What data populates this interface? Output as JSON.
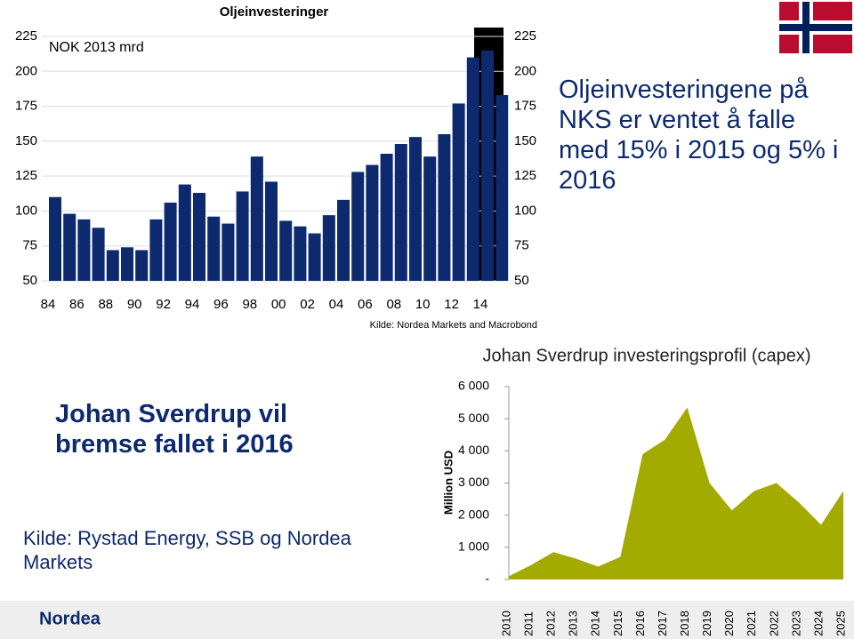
{
  "chart_data": [
    {
      "type": "bar",
      "title": "Oljeinvesteringer",
      "unit_label": "NOK 2013 mrd",
      "source": "Kilde: Nordea Markets and Macrobond",
      "categories": [
        "84",
        null,
        "86",
        null,
        "88",
        null,
        "90",
        null,
        "92",
        null,
        "94",
        null,
        "96",
        null,
        "98",
        null,
        "00",
        null,
        "02",
        null,
        "04",
        null,
        "06",
        null,
        "08",
        null,
        "10",
        null,
        "12",
        null,
        "14",
        null
      ],
      "values": [
        110,
        98,
        94,
        88,
        72,
        74,
        72,
        94,
        106,
        119,
        113,
        96,
        91,
        114,
        139,
        121,
        93,
        89,
        84,
        97,
        108,
        128,
        133,
        141,
        148,
        153,
        139,
        155,
        177,
        210,
        215,
        183
      ],
      "color": "#0d2a6e",
      "ylim": [
        50,
        225
      ],
      "yticks": [
        50,
        75,
        100,
        125,
        150,
        175,
        200,
        225
      ],
      "grid": true
    },
    {
      "type": "area",
      "title": "Johan Sverdrup investeringsprofil (capex)",
      "y_label": "Million USD",
      "categories": [
        "2010",
        "2011",
        "2012",
        "2013",
        "2014",
        "2015",
        "2016",
        "2017",
        "2018",
        "2019",
        "2020",
        "2021",
        "2022",
        "2023",
        "2024",
        "2025"
      ],
      "values": [
        100,
        450,
        850,
        650,
        400,
        700,
        3900,
        4350,
        5350,
        3000,
        2150,
        2750,
        3000,
        2400,
        1700,
        2750
      ],
      "color": "#a3ab00",
      "ylim": [
        0,
        6000
      ],
      "yticks": [
        {
          "value": 0,
          "label": "-"
        },
        {
          "value": 1000,
          "label": "1 000"
        },
        {
          "value": 2000,
          "label": "2 000"
        },
        {
          "value": 3000,
          "label": "3 000"
        },
        {
          "value": 4000,
          "label": "4 000"
        },
        {
          "value": 5000,
          "label": "5 000"
        },
        {
          "value": 6000,
          "label": "6 000"
        }
      ]
    }
  ],
  "slide": {
    "headline_top": "Oljeinvesteringene på NKS er ventet å falle med 15% i 2015 og 5% i 2016",
    "headline_left": "Johan Sverdrup vil bremse fallet i 2016",
    "source": "Kilde: Rystad Energy, SSB og Nordea Markets",
    "logo": "Nordea"
  }
}
